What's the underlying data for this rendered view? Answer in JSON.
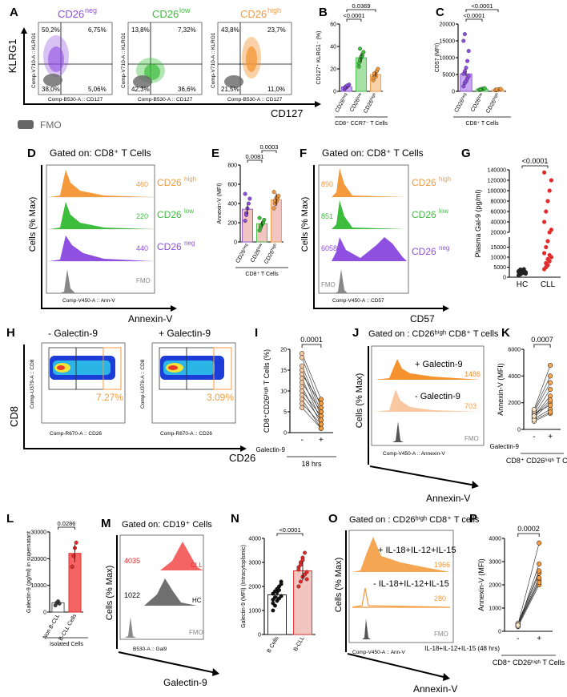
{
  "colors": {
    "neg": "#8f4fe0",
    "low": "#3cbd3c",
    "high": "#f59a3c",
    "highLight": "#f8c9a0",
    "fmo": "#777777",
    "cll": "#e02c2c",
    "hc": "#4b4b4b",
    "hcBar": "#ffffff",
    "bBar": "#f3c5c0"
  },
  "panelLabels": [
    "A",
    "B",
    "C",
    "D",
    "E",
    "F",
    "G",
    "H",
    "I",
    "J",
    "K",
    "L",
    "M",
    "N",
    "O",
    "P"
  ],
  "panelA": {
    "ylabel": "KLRG1",
    "xlabel": "CD127",
    "fmo_label": "FMO",
    "plots": [
      {
        "title": "CD26",
        "sup": "neg",
        "q": [
          "50,2%",
          "6,75%",
          "38,0%",
          "5,06%"
        ],
        "xaxis": "Comp-B530-A :: CD127",
        "yaxis": "Comp-V710-A :: KLRG1"
      },
      {
        "title": "CD26",
        "sup": "low",
        "q": [
          "13,8%",
          "7,32%",
          "42,3%",
          "36,6%"
        ],
        "xaxis": "Comp-B530-A :: CD127",
        "yaxis": "Comp-V710-A :: KLRG1"
      },
      {
        "title": "CD26",
        "sup": "high",
        "q": [
          "43,8%",
          "23,7%",
          "21,5%",
          "11,0%"
        ],
        "xaxis": "Comp-B530-A :: CD127",
        "yaxis": "Comp-V710-A :: KLRG1"
      }
    ]
  },
  "panelC": {
    "gate": "Gated on: CD8⁺ T Cells",
    "ylabel": "Cells (% Max)",
    "xaxis": "Comp-V450-A :: Ann-V",
    "xlabel": "Annexin-V",
    "rows": [
      {
        "label": "CD26",
        "sup": "high",
        "value": "460"
      },
      {
        "label": "CD26",
        "sup": "low",
        "value": "220"
      },
      {
        "label": "CD26",
        "sup": "neg",
        "value": "440"
      },
      {
        "label": "FMO",
        "sup": "",
        "value": ""
      }
    ]
  },
  "panelE": {
    "gate": "Gated on: CD8⁺ T Cells",
    "ylabel": "Cells (% Max)",
    "xaxis": "Comp-V450-A :: CD57",
    "xlabel": "CD57",
    "rows": [
      {
        "label": "CD26",
        "sup": "high",
        "value": "890"
      },
      {
        "label": "CD26",
        "sup": "low",
        "value": "851"
      },
      {
        "label": "CD26",
        "sup": "neg",
        "value": "6058"
      },
      {
        "label": "FMO",
        "sup": "",
        "value": ""
      }
    ]
  },
  "panelH": {
    "left_title": "- Galectin-9",
    "right_title": "+ Galectin-9",
    "left_pct": "7.27%",
    "right_pct": "3.09%",
    "xaxis": "Comp-R670-A :: CD26",
    "yaxis": "Comp-U379-A :: CD8",
    "xlabel": "CD26",
    "ylabel": "CD8"
  },
  "panelJ": {
    "gate": "Gated on : CD26ʰⁱᵍʰ CD8⁺ T cells",
    "ylabel": "Cells (% Max)",
    "xaxis": "Comp-V450-A :: Annexin-V",
    "xlabel": "Annexin-V",
    "rows": [
      {
        "label": "+ Galectin-9",
        "value": "1486"
      },
      {
        "label": "- Galectin-9",
        "value": "703"
      },
      {
        "label": "FMO",
        "value": ""
      }
    ]
  },
  "panelM": {
    "gate": "Gated on: CD19⁺ Cells",
    "ylabel": "Cells (% Max)",
    "xaxis": "B530-A :: Gal9",
    "xlabel": "Galectin-9",
    "rows": [
      {
        "label": "CLL",
        "value": "4035"
      },
      {
        "label": "HC",
        "value": "1022"
      },
      {
        "label": "FMO",
        "value": ""
      }
    ]
  },
  "panelO": {
    "gate": "Gated on : CD26ʰⁱᵍʰ CD8⁺ T cells",
    "ylabel": "Cells (% Max)",
    "xaxis": "Comp-V450-A :: Ann-V",
    "xlabel": "Annexin-V",
    "rows": [
      {
        "label": "+ IL-18+IL-12+IL-15",
        "value": "1966"
      },
      {
        "label": "- IL-18+IL-12+IL-15",
        "value": "280"
      },
      {
        "label": "FMO",
        "value": ""
      }
    ]
  },
  "chart_data": [
    {
      "type": "bar",
      "panel": "B",
      "ylabel": "CD127⁺ KLRG1⁻ (%)",
      "xlabel": "CD8⁺ CCR7⁻ T Cells",
      "categories": [
        "CD26neg",
        "CD26low",
        "CD26high"
      ],
      "ylim": [
        0,
        60
      ],
      "yticks": [
        0,
        20,
        40,
        60
      ],
      "means": [
        4,
        30,
        15
      ],
      "points": [
        [
          2,
          3,
          4,
          5,
          6,
          3,
          4,
          5
        ],
        [
          22,
          28,
          30,
          32,
          35,
          25,
          38,
          31
        ],
        [
          10,
          14,
          15,
          18,
          20,
          12,
          16,
          13
        ]
      ],
      "pvalues": [
        {
          "pair": [
            0,
            1
          ],
          "label": "<0.0001"
        },
        {
          "pair": [
            0,
            2
          ],
          "label": "0.0369"
        }
      ]
    },
    {
      "type": "bar",
      "panel": "F",
      "ylabel": "CD57 (MFI)",
      "xlabel": "CD8⁺ T Cells",
      "categories": [
        "CD26neg",
        "CD26low",
        "CD26high"
      ],
      "ylim": [
        0,
        20000
      ],
      "yticks": [
        0,
        5000,
        10000,
        15000,
        20000
      ],
      "means": [
        5200,
        700,
        500
      ],
      "points": [
        [
          1500,
          2500,
          3000,
          3800,
          4500,
          5200,
          6000,
          7000,
          9000,
          12000,
          15000,
          17000
        ],
        [
          400,
          600,
          700,
          800,
          900,
          500,
          650
        ],
        [
          300,
          400,
          500,
          600,
          700,
          450,
          550
        ]
      ],
      "pvalues": [
        {
          "pair": [
            0,
            1
          ],
          "label": "<0.0001"
        },
        {
          "pair": [
            0,
            2
          ],
          "label": "<0.0001"
        }
      ]
    },
    {
      "type": "bar",
      "panel": "D",
      "ylabel": "Annexin-V (MFI)",
      "xlabel": "CD8⁺ T Cells",
      "categories": [
        "CD26neg",
        "CD26low",
        "CD26high"
      ],
      "ylim": [
        0,
        800
      ],
      "yticks": [
        0,
        200,
        400,
        600,
        800
      ],
      "means": [
        340,
        190,
        440
      ],
      "points": [
        [
          220,
          300,
          350,
          400,
          450,
          500,
          280
        ],
        [
          120,
          150,
          180,
          200,
          230,
          250,
          170
        ],
        [
          350,
          400,
          420,
          450,
          480,
          520,
          430,
          460
        ]
      ],
      "pvalues": [
        {
          "pair": [
            0,
            1
          ],
          "label": "0.0081"
        },
        {
          "pair": [
            1,
            2
          ],
          "label": "0.0003"
        }
      ]
    },
    {
      "type": "scatter",
      "panel": "G",
      "ylabel": "Plasma Gal-9 (pg/ml)",
      "categories": [
        "HC",
        "CLL"
      ],
      "yticks": [
        "0",
        "5000",
        "10000",
        "15000",
        "20000",
        "40000",
        "60000",
        "80000",
        "100000",
        "120000",
        "140000"
      ],
      "pvalues": [
        {
          "pair": [
            0,
            1
          ],
          "label": "<0.0001"
        }
      ],
      "points": [
        [
          1000,
          1500,
          2000,
          2200,
          2500,
          3000,
          3200,
          3500,
          4000,
          1800,
          2700,
          3800
        ],
        [
          4000,
          5000,
          6000,
          8000,
          10000,
          12000,
          15000,
          18000,
          20000,
          25000,
          40000,
          60000,
          80000,
          100000,
          120000,
          135000,
          7000,
          9000,
          11000
        ]
      ]
    },
    {
      "type": "line",
      "panel": "I",
      "ylabel": "CD8⁺CD26ʰⁱᵍʰ T Cells (%)",
      "xlabel": "18 hrs",
      "factor": "Galectin-9",
      "categories": [
        "-",
        "+"
      ],
      "ylim": [
        0,
        20
      ],
      "yticks": [
        0,
        5,
        10,
        15,
        20
      ],
      "pvalues": [
        {
          "pair": [
            0,
            1
          ],
          "label": "0.0001"
        }
      ],
      "pairs": [
        [
          19,
          8
        ],
        [
          18,
          6
        ],
        [
          16,
          5
        ],
        [
          15,
          4
        ],
        [
          14,
          7
        ],
        [
          13,
          3
        ],
        [
          12,
          5
        ],
        [
          11,
          2
        ],
        [
          10,
          4
        ],
        [
          9,
          3
        ],
        [
          8,
          1
        ],
        [
          7,
          2
        ],
        [
          6,
          1
        ]
      ]
    },
    {
      "type": "line",
      "panel": "K",
      "ylabel": "Annexin-V (MFI)",
      "xlabel": "CD8⁺ CD26ʰⁱᵍʰ T Cells",
      "factor": "Galectin-9",
      "categories": [
        "-",
        "+"
      ],
      "ylim": [
        0,
        6000
      ],
      "yticks": [
        0,
        2000,
        4000,
        6000
      ],
      "pvalues": [
        {
          "pair": [
            0,
            1
          ],
          "label": "0.0007"
        }
      ],
      "pairs": [
        [
          600,
          1200
        ],
        [
          800,
          1500
        ],
        [
          900,
          2000
        ],
        [
          1000,
          2500
        ],
        [
          1100,
          3000
        ],
        [
          1200,
          1800
        ],
        [
          1300,
          3500
        ],
        [
          1400,
          4000
        ],
        [
          1500,
          4800
        ],
        [
          700,
          1300
        ],
        [
          1000,
          2200
        ]
      ]
    },
    {
      "type": "bar",
      "panel": "L",
      "ylabel": "Galectin-9 (pg/ml) in supernatant",
      "xlabel": "Isolated Cells",
      "categories": [
        "Non B-CLL",
        "B-CLL Cells"
      ],
      "ylim": [
        0,
        30000
      ],
      "yticks": [
        0,
        10000,
        20000,
        30000
      ],
      "means": [
        3500,
        22000
      ],
      "points": [
        [
          2500,
          3500,
          4000,
          3200
        ],
        [
          17000,
          21000,
          24000,
          26000
        ]
      ],
      "pvalues": [
        {
          "pair": [
            0,
            1
          ],
          "label": "0.0286"
        }
      ]
    },
    {
      "type": "bar",
      "panel": "N",
      "ylabel": "Galectin-9 (MFI) (Intracytoplsmic)",
      "categories": [
        "B Cells",
        "B-CLL"
      ],
      "ylim": [
        0,
        4000
      ],
      "yticks": [
        0,
        1000,
        2000,
        3000,
        4000
      ],
      "means": [
        1650,
        2650
      ],
      "points": [
        [
          1000,
          1200,
          1400,
          1500,
          1600,
          1700,
          1800,
          1900,
          2000,
          2200,
          1300,
          1550,
          1750,
          1850,
          2100,
          1450
        ],
        [
          2000,
          2200,
          2400,
          2500,
          2600,
          2800,
          3000,
          3200,
          3400,
          2300,
          2700,
          2900,
          3100
        ]
      ],
      "pvalues": [
        {
          "pair": [
            0,
            1
          ],
          "label": "<0.0001"
        }
      ]
    },
    {
      "type": "line",
      "panel": "P",
      "ylabel": "Annexin-V (MFI)",
      "xlabel": "CD8⁺ CD26ʰⁱᵍʰ T Cells",
      "factor": "IL-18+IL-12+IL-15 (48 hrs)",
      "categories": [
        "-",
        "+"
      ],
      "ylim": [
        0,
        4000
      ],
      "yticks": [
        0,
        1000,
        2000,
        3000,
        4000
      ],
      "pvalues": [
        {
          "pair": [
            0,
            1
          ],
          "label": "0.0002"
        }
      ],
      "pairs": [
        [
          200,
          2000
        ],
        [
          250,
          2200
        ],
        [
          300,
          2300
        ],
        [
          280,
          2500
        ],
        [
          350,
          2600
        ],
        [
          220,
          2900
        ],
        [
          300,
          3800
        ],
        [
          260,
          2100
        ]
      ]
    }
  ]
}
